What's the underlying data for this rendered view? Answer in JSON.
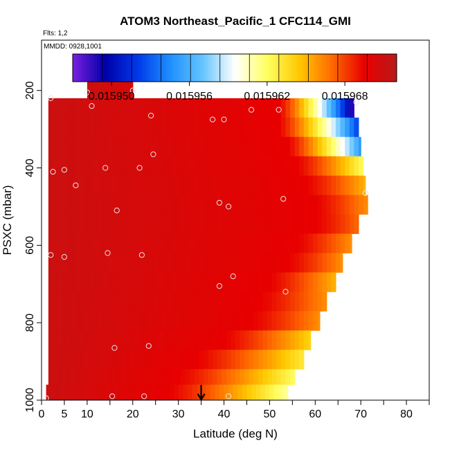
{
  "chart_data": {
    "type": "heatmap",
    "title": "ATOM3 Northeast_Pacific_1 CFC114_GMI",
    "flights_label": "Flts: 1,2",
    "mmdd_label": "MMDD: 0928,1001",
    "xlabel": "Latitude (deg N)",
    "ylabel": "PSXC (mbar)",
    "xlim": [
      0,
      85
    ],
    "ylim": [
      1000,
      70
    ],
    "x_ticks": [
      0,
      5,
      10,
      20,
      30,
      40,
      50,
      60,
      70,
      80
    ],
    "x_minor_ticks": [
      15,
      25,
      35,
      45,
      55,
      65,
      75,
      85
    ],
    "y_ticks": [
      200,
      400,
      600,
      800,
      1000
    ],
    "colorbar": {
      "min": 0.015947,
      "max": 0.015972,
      "tick_values": [
        0.01595,
        0.015956,
        0.015962,
        0.015968
      ],
      "tick_labels": [
        "0.015950",
        "0.015956",
        "0.015962",
        "0.015968"
      ],
      "colors": [
        "#7b1fe0",
        "#0000a8",
        "#0038e8",
        "#1e8fff",
        "#63c4ff",
        "#ffffff",
        "#ffff60",
        "#ffc800",
        "#ff6a00",
        "#e80000",
        "#b81a1a"
      ]
    },
    "bands": [
      {
        "p_top": 170,
        "p_bot": 220,
        "lat_min": 10,
        "lat_max": 20,
        "lat_end": 20,
        "transition_lat": 30,
        "edge_value": 0.01597
      },
      {
        "p_top": 220,
        "p_bot": 270,
        "lat_min": 1.5,
        "lat_max": 68.5,
        "lat_end": 68.5,
        "transition_lat": 52,
        "edge_value": 0.015948
      },
      {
        "p_top": 270,
        "p_bot": 320,
        "lat_min": 1.5,
        "lat_max": 69.5,
        "lat_end": 69.5,
        "transition_lat": 52,
        "edge_value": 0.015952
      },
      {
        "p_top": 320,
        "p_bot": 370,
        "lat_min": 1.5,
        "lat_max": 70,
        "lat_end": 70,
        "transition_lat": 54,
        "edge_value": 0.015955
      },
      {
        "p_top": 370,
        "p_bot": 420,
        "lat_min": 1.5,
        "lat_max": 70.5,
        "lat_end": 70.5,
        "transition_lat": 56,
        "edge_value": 0.015962
      },
      {
        "p_top": 420,
        "p_bot": 470,
        "lat_min": 1.5,
        "lat_max": 71,
        "lat_end": 71,
        "transition_lat": 58,
        "edge_value": 0.015965
      },
      {
        "p_top": 470,
        "p_bot": 520,
        "lat_min": 1.5,
        "lat_max": 71.5,
        "lat_end": 71.5,
        "transition_lat": 60,
        "edge_value": 0.015966
      },
      {
        "p_top": 520,
        "p_bot": 570,
        "lat_min": 1.5,
        "lat_max": 69.5,
        "lat_end": 69.5,
        "transition_lat": 60,
        "edge_value": 0.015967
      },
      {
        "p_top": 570,
        "p_bot": 620,
        "lat_min": 1.5,
        "lat_max": 68,
        "lat_end": 68,
        "transition_lat": 56,
        "edge_value": 0.015966
      },
      {
        "p_top": 620,
        "p_bot": 670,
        "lat_min": 1.5,
        "lat_max": 66,
        "lat_end": 66,
        "transition_lat": 54,
        "edge_value": 0.015966
      },
      {
        "p_top": 670,
        "p_bot": 720,
        "lat_min": 1.5,
        "lat_max": 64.5,
        "lat_end": 64.5,
        "transition_lat": 50,
        "edge_value": 0.015965
      },
      {
        "p_top": 720,
        "p_bot": 770,
        "lat_min": 1.5,
        "lat_max": 62.5,
        "lat_end": 62.5,
        "transition_lat": 48,
        "edge_value": 0.015966
      },
      {
        "p_top": 770,
        "p_bot": 820,
        "lat_min": 1.5,
        "lat_max": 61,
        "lat_end": 61,
        "transition_lat": 46,
        "edge_value": 0.015966
      },
      {
        "p_top": 820,
        "p_bot": 870,
        "lat_min": 1.5,
        "lat_max": 59,
        "lat_end": 59,
        "transition_lat": 40,
        "edge_value": 0.015964
      },
      {
        "p_top": 870,
        "p_bot": 920,
        "lat_min": 1.5,
        "lat_max": 57.5,
        "lat_end": 57.5,
        "transition_lat": 34,
        "edge_value": 0.015963
      },
      {
        "p_top": 920,
        "p_bot": 960,
        "lat_min": 1.5,
        "lat_max": 55.5,
        "lat_end": 55.5,
        "transition_lat": 30,
        "edge_value": 0.015962
      },
      {
        "p_top": 960,
        "p_bot": 1000,
        "lat_min": 1,
        "lat_max": 54,
        "lat_end": 54,
        "transition_lat": 28,
        "edge_value": 0.015961
      }
    ],
    "points": [
      {
        "lat": 10,
        "p": 205
      },
      {
        "lat": 20,
        "p": 200
      },
      {
        "lat": 2,
        "p": 220
      },
      {
        "lat": 11,
        "p": 240
      },
      {
        "lat": 69,
        "p": 230
      },
      {
        "lat": 52,
        "p": 250
      },
      {
        "lat": 46,
        "p": 250
      },
      {
        "lat": 24,
        "p": 265
      },
      {
        "lat": 37.5,
        "p": 275
      },
      {
        "lat": 40,
        "p": 275
      },
      {
        "lat": 24.5,
        "p": 365
      },
      {
        "lat": 2.5,
        "p": 410
      },
      {
        "lat": 5,
        "p": 405
      },
      {
        "lat": 14,
        "p": 400
      },
      {
        "lat": 21.5,
        "p": 400
      },
      {
        "lat": 7.5,
        "p": 445
      },
      {
        "lat": 39,
        "p": 490
      },
      {
        "lat": 41,
        "p": 500
      },
      {
        "lat": 53,
        "p": 480
      },
      {
        "lat": 71,
        "p": 465
      },
      {
        "lat": 16.5,
        "p": 510
      },
      {
        "lat": 2,
        "p": 625
      },
      {
        "lat": 5,
        "p": 630
      },
      {
        "lat": 14.5,
        "p": 620
      },
      {
        "lat": 22,
        "p": 625
      },
      {
        "lat": 42,
        "p": 680
      },
      {
        "lat": 39,
        "p": 705
      },
      {
        "lat": 53.5,
        "p": 720
      },
      {
        "lat": 16,
        "p": 865
      },
      {
        "lat": 23.5,
        "p": 860
      },
      {
        "lat": 1,
        "p": 995
      },
      {
        "lat": 15.5,
        "p": 990
      },
      {
        "lat": 22.5,
        "p": 990
      },
      {
        "lat": 41,
        "p": 990
      }
    ],
    "arrow_lat": 35
  }
}
